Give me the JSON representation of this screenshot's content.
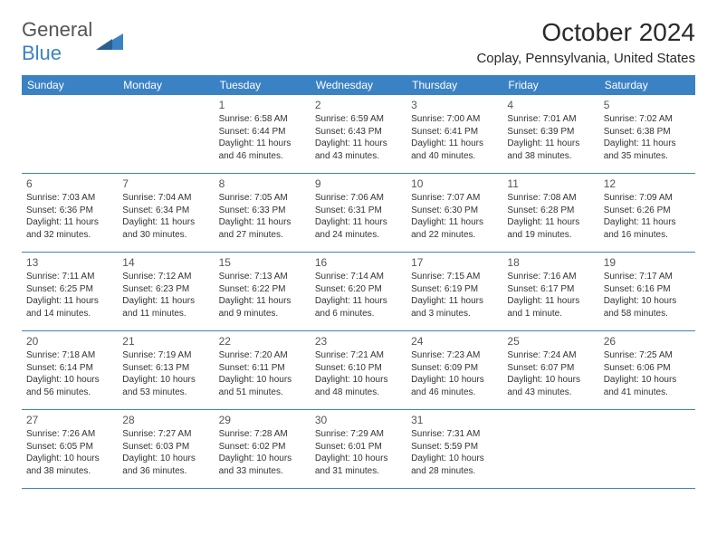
{
  "logo": {
    "text1": "General",
    "text2": "Blue"
  },
  "title": "October 2024",
  "location": "Coplay, Pennsylvania, United States",
  "colors": {
    "accent": "#3b82c4",
    "text": "#2a2a2a"
  },
  "day_headers": [
    "Sunday",
    "Monday",
    "Tuesday",
    "Wednesday",
    "Thursday",
    "Friday",
    "Saturday"
  ],
  "weeks": [
    [
      null,
      null,
      {
        "d": "1",
        "sr": "6:58 AM",
        "ss": "6:44 PM",
        "dl": "11 hours and 46 minutes."
      },
      {
        "d": "2",
        "sr": "6:59 AM",
        "ss": "6:43 PM",
        "dl": "11 hours and 43 minutes."
      },
      {
        "d": "3",
        "sr": "7:00 AM",
        "ss": "6:41 PM",
        "dl": "11 hours and 40 minutes."
      },
      {
        "d": "4",
        "sr": "7:01 AM",
        "ss": "6:39 PM",
        "dl": "11 hours and 38 minutes."
      },
      {
        "d": "5",
        "sr": "7:02 AM",
        "ss": "6:38 PM",
        "dl": "11 hours and 35 minutes."
      }
    ],
    [
      {
        "d": "6",
        "sr": "7:03 AM",
        "ss": "6:36 PM",
        "dl": "11 hours and 32 minutes."
      },
      {
        "d": "7",
        "sr": "7:04 AM",
        "ss": "6:34 PM",
        "dl": "11 hours and 30 minutes."
      },
      {
        "d": "8",
        "sr": "7:05 AM",
        "ss": "6:33 PM",
        "dl": "11 hours and 27 minutes."
      },
      {
        "d": "9",
        "sr": "7:06 AM",
        "ss": "6:31 PM",
        "dl": "11 hours and 24 minutes."
      },
      {
        "d": "10",
        "sr": "7:07 AM",
        "ss": "6:30 PM",
        "dl": "11 hours and 22 minutes."
      },
      {
        "d": "11",
        "sr": "7:08 AM",
        "ss": "6:28 PM",
        "dl": "11 hours and 19 minutes."
      },
      {
        "d": "12",
        "sr": "7:09 AM",
        "ss": "6:26 PM",
        "dl": "11 hours and 16 minutes."
      }
    ],
    [
      {
        "d": "13",
        "sr": "7:11 AM",
        "ss": "6:25 PM",
        "dl": "11 hours and 14 minutes."
      },
      {
        "d": "14",
        "sr": "7:12 AM",
        "ss": "6:23 PM",
        "dl": "11 hours and 11 minutes."
      },
      {
        "d": "15",
        "sr": "7:13 AM",
        "ss": "6:22 PM",
        "dl": "11 hours and 9 minutes."
      },
      {
        "d": "16",
        "sr": "7:14 AM",
        "ss": "6:20 PM",
        "dl": "11 hours and 6 minutes."
      },
      {
        "d": "17",
        "sr": "7:15 AM",
        "ss": "6:19 PM",
        "dl": "11 hours and 3 minutes."
      },
      {
        "d": "18",
        "sr": "7:16 AM",
        "ss": "6:17 PM",
        "dl": "11 hours and 1 minute."
      },
      {
        "d": "19",
        "sr": "7:17 AM",
        "ss": "6:16 PM",
        "dl": "10 hours and 58 minutes."
      }
    ],
    [
      {
        "d": "20",
        "sr": "7:18 AM",
        "ss": "6:14 PM",
        "dl": "10 hours and 56 minutes."
      },
      {
        "d": "21",
        "sr": "7:19 AM",
        "ss": "6:13 PM",
        "dl": "10 hours and 53 minutes."
      },
      {
        "d": "22",
        "sr": "7:20 AM",
        "ss": "6:11 PM",
        "dl": "10 hours and 51 minutes."
      },
      {
        "d": "23",
        "sr": "7:21 AM",
        "ss": "6:10 PM",
        "dl": "10 hours and 48 minutes."
      },
      {
        "d": "24",
        "sr": "7:23 AM",
        "ss": "6:09 PM",
        "dl": "10 hours and 46 minutes."
      },
      {
        "d": "25",
        "sr": "7:24 AM",
        "ss": "6:07 PM",
        "dl": "10 hours and 43 minutes."
      },
      {
        "d": "26",
        "sr": "7:25 AM",
        "ss": "6:06 PM",
        "dl": "10 hours and 41 minutes."
      }
    ],
    [
      {
        "d": "27",
        "sr": "7:26 AM",
        "ss": "6:05 PM",
        "dl": "10 hours and 38 minutes."
      },
      {
        "d": "28",
        "sr": "7:27 AM",
        "ss": "6:03 PM",
        "dl": "10 hours and 36 minutes."
      },
      {
        "d": "29",
        "sr": "7:28 AM",
        "ss": "6:02 PM",
        "dl": "10 hours and 33 minutes."
      },
      {
        "d": "30",
        "sr": "7:29 AM",
        "ss": "6:01 PM",
        "dl": "10 hours and 31 minutes."
      },
      {
        "d": "31",
        "sr": "7:31 AM",
        "ss": "5:59 PM",
        "dl": "10 hours and 28 minutes."
      },
      null,
      null
    ]
  ]
}
